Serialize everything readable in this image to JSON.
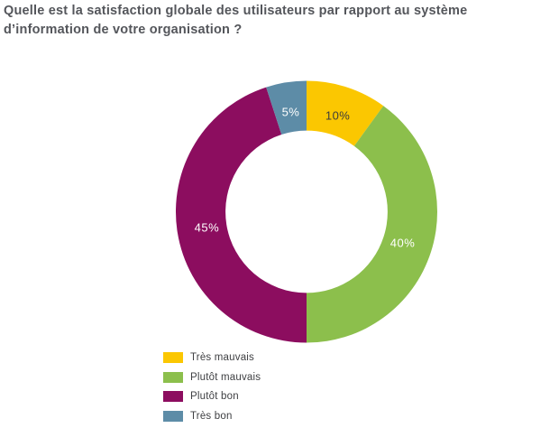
{
  "title": "Quelle est la satisfaction globale des utilisateurs par rapport au système d’information de votre organisation ?",
  "title_color": "#54565B",
  "background_color": "#FFFFFF",
  "chart_data": {
    "type": "pie",
    "subtype": "donut",
    "title": "Quelle est la satisfaction globale des utilisateurs par rapport au système d’information de votre organisation ?",
    "categories": [
      "Très mauvais",
      "Plutôt mauvais",
      "Plutôt bon",
      "Très bon"
    ],
    "values": [
      10,
      40,
      45,
      5
    ],
    "unit": "%",
    "data_labels": [
      "10%",
      "40%",
      "45%",
      "5%"
    ],
    "colors": [
      "#FBC701",
      "#8CBF4C",
      "#8C0D5F",
      "#5D8CA7"
    ],
    "label_colors": [
      "#3C3C3B",
      "#FFFFFF",
      "#FFFFFF",
      "#FFFFFF"
    ],
    "start_angle_deg": 0,
    "direction": "clockwise",
    "inner_radius_ratio": 0.62,
    "legend_position": "bottom-left",
    "grid": false
  },
  "legend": {
    "items": [
      {
        "label": "Très mauvais",
        "color": "#FBC701"
      },
      {
        "label": "Plutôt mauvais",
        "color": "#8CBF4C"
      },
      {
        "label": "Plutôt bon",
        "color": "#8C0D5F"
      },
      {
        "label": "Très bon",
        "color": "#5D8CA7"
      }
    ]
  }
}
